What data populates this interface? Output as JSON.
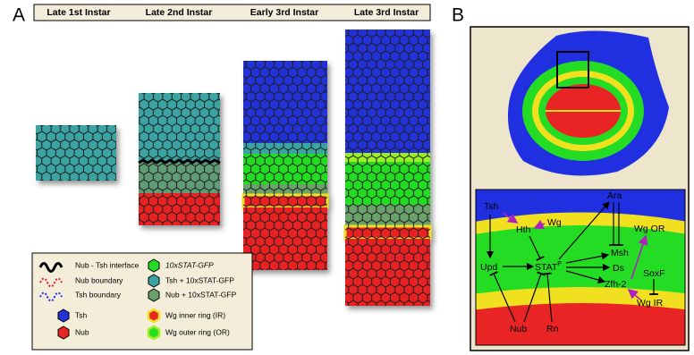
{
  "panel_a": {
    "label": "A",
    "stages": [
      "Late 1st Instar",
      "Late 2nd Instar",
      "Early 3rd Instar",
      "Late 3rd Instar"
    ],
    "legend": [
      "Nub - Tsh interface",
      "Nub boundary",
      "Tsh boundary",
      "Tsh",
      "Nub",
      "10xSTAT-GFP",
      "Tsh + 10xSTAT-GFP",
      "Nub + 10xSTAT-GFP",
      "Wg inner ring (IR)",
      "Wg outer ring (OR)"
    ]
  },
  "panel_b": {
    "label": "B",
    "nodes": {
      "tsh": "Tsh",
      "wg": "Wg",
      "hth": "Hth",
      "ara": "Ara",
      "msh": "Msh",
      "wg_or": "Wg OR",
      "upd": "Upd",
      "stat": "STAT",
      "stat_sup": "P",
      "ds": "Ds",
      "zfh2": "Zfh-2",
      "soxf": "SoxF",
      "wg_ir": "Wg IR",
      "nub": "Nub",
      "rn": "Rn"
    }
  }
}
